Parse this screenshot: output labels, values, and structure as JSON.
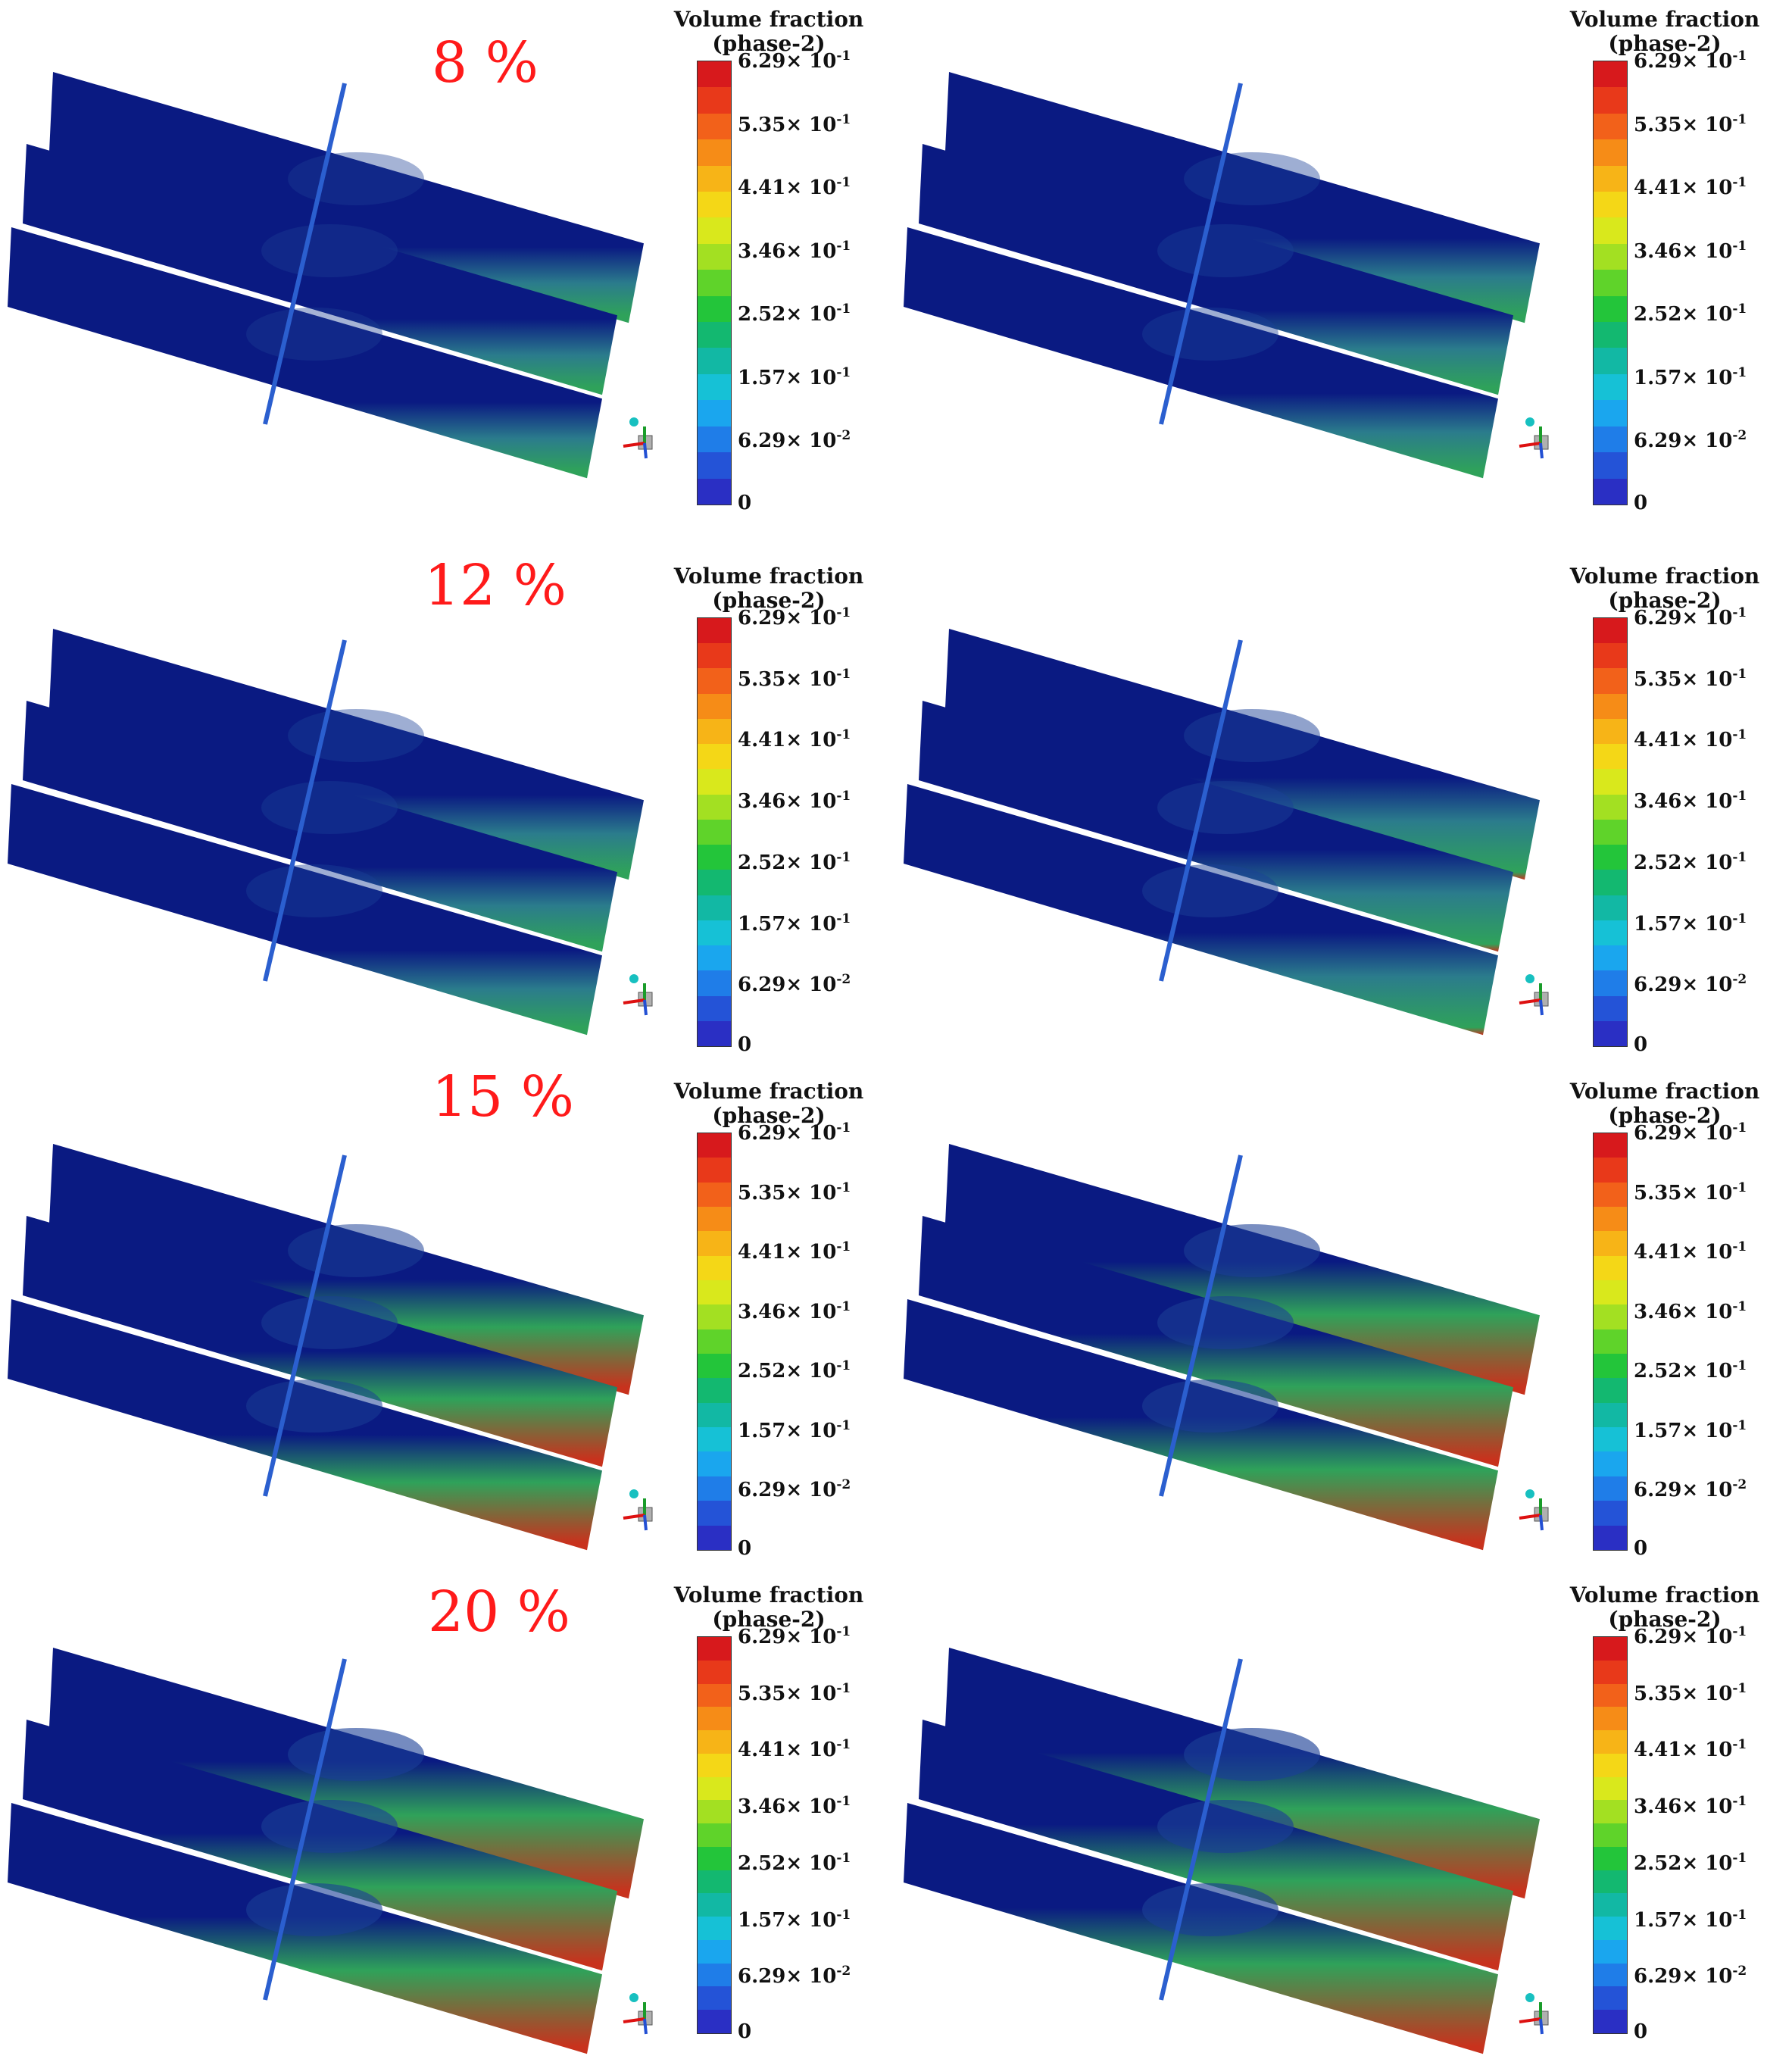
{
  "rows": [
    {
      "label": "8 %"
    },
    {
      "label": "12 %"
    },
    {
      "label": "15 %"
    },
    {
      "label": "20 %"
    }
  ],
  "legend": {
    "title_line1": "Volume fraction",
    "title_line2": "(phase-2)",
    "ticks": [
      {
        "mant": "6.29",
        "times": "× 10",
        "exp": "-1"
      },
      {
        "mant": "5.35",
        "times": "× 10",
        "exp": "-1"
      },
      {
        "mant": "4.41",
        "times": "× 10",
        "exp": "-1"
      },
      {
        "mant": "3.46",
        "times": "× 10",
        "exp": "-1"
      },
      {
        "mant": "2.52",
        "times": "× 10",
        "exp": "-1"
      },
      {
        "mant": "1.57",
        "times": "× 10",
        "exp": "-1"
      },
      {
        "mant": "6.29",
        "times": "× 10",
        "exp": "-2"
      },
      {
        "mant": "0",
        "times": "",
        "exp": ""
      }
    ],
    "colors": [
      "#d7191c",
      "#e8391a",
      "#f2611a",
      "#f68c17",
      "#f7b417",
      "#f4d717",
      "#d9e81c",
      "#a3e022",
      "#5fd32a",
      "#23c53a",
      "#13b870",
      "#12b8a4",
      "#16c1d6",
      "#1aa6ee",
      "#1f7de8",
      "#2453d7",
      "#2a2fc4"
    ]
  },
  "colors": {
    "plate_base": "#0a1a82",
    "plate_mid": "#1b3f96",
    "plate_teal": "#2b7c8c",
    "plate_green": "#2fa25a",
    "plate_red": "#c8321d",
    "pipe": "#2b5fcf",
    "label_red": "#ff1a1a"
  },
  "intensity": [
    [
      0.15,
      0.25
    ],
    [
      0.25,
      0.45
    ],
    [
      0.6,
      0.8
    ],
    [
      0.85,
      0.95
    ]
  ]
}
